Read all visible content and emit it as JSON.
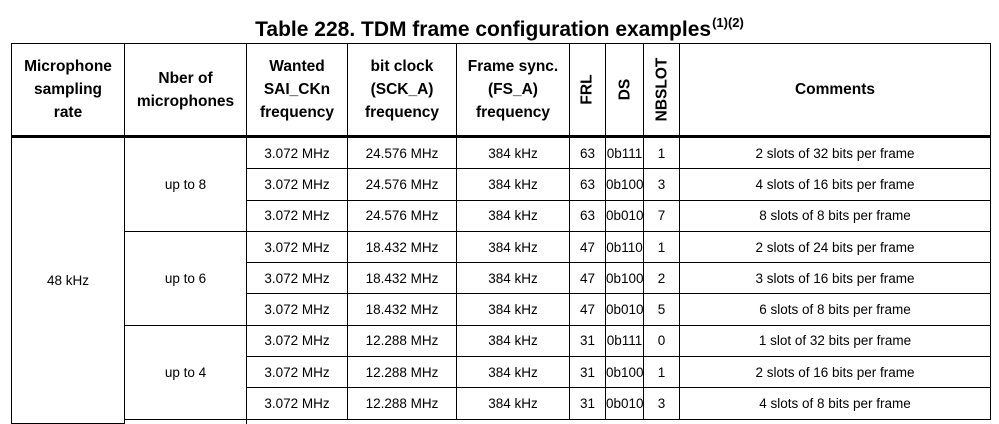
{
  "title": "Table 228. TDM frame configuration examples",
  "title_notes": "(1)(2)",
  "headers": {
    "sampling_rate": [
      "Microphone",
      "sampling",
      "rate"
    ],
    "nber_mics": [
      "Nber of",
      "microphones"
    ],
    "wanted_freq": [
      "Wanted",
      "SAI_CKn",
      "frequency"
    ],
    "bit_clock": [
      "bit clock",
      "(SCK_A)",
      "frequency"
    ],
    "frame_sync": [
      "Frame sync.",
      "(FS_A)",
      "frequency"
    ],
    "frl": "FRL",
    "ds": "DS",
    "nbslot": "NBSLOT",
    "comments": "Comments"
  },
  "sampling_rate": "48 kHz",
  "groups": [
    {
      "mics": "up to 8",
      "rows": [
        {
          "wanted": "3.072 MHz",
          "sck": "24.576 MHz",
          "fs": "384 kHz",
          "frl": "63",
          "ds": "0b111",
          "nbslot": "1",
          "comment": "2 slots of 32 bits per frame"
        },
        {
          "wanted": "3.072 MHz",
          "sck": "24.576 MHz",
          "fs": "384 kHz",
          "frl": "63",
          "ds": "0b100",
          "nbslot": "3",
          "comment": "4 slots of 16 bits per frame"
        },
        {
          "wanted": "3.072 MHz",
          "sck": "24.576 MHz",
          "fs": "384 kHz",
          "frl": "63",
          "ds": "0b010",
          "nbslot": "7",
          "comment": "8 slots of 8 bits per frame"
        }
      ]
    },
    {
      "mics": "up to 6",
      "rows": [
        {
          "wanted": "3.072 MHz",
          "sck": "18.432 MHz",
          "fs": "384 kHz",
          "frl": "47",
          "ds": "0b110",
          "nbslot": "1",
          "comment": "2 slots of 24 bits per frame"
        },
        {
          "wanted": "3.072 MHz",
          "sck": "18.432 MHz",
          "fs": "384 kHz",
          "frl": "47",
          "ds": "0b100",
          "nbslot": "2",
          "comment": "3 slots of 16 bits per frame"
        },
        {
          "wanted": "3.072 MHz",
          "sck": "18.432 MHz",
          "fs": "384 kHz",
          "frl": "47",
          "ds": "0b010",
          "nbslot": "5",
          "comment": "6 slots of 8 bits per frame"
        }
      ]
    },
    {
      "mics": "up to 4",
      "rows": [
        {
          "wanted": "3.072 MHz",
          "sck": "12.288 MHz",
          "fs": "384 kHz",
          "frl": "31",
          "ds": "0b111",
          "nbslot": "0",
          "comment": "1 slot of 32 bits per frame"
        },
        {
          "wanted": "3.072 MHz",
          "sck": "12.288 MHz",
          "fs": "384 kHz",
          "frl": "31",
          "ds": "0b100",
          "nbslot": "1",
          "comment": "2 slots of 16 bits per frame"
        },
        {
          "wanted": "3.072 MHz",
          "sck": "12.288 MHz",
          "fs": "384 kHz",
          "frl": "31",
          "ds": "0b010",
          "nbslot": "3",
          "comment": "4 slots of 8 bits per frame"
        }
      ]
    }
  ]
}
